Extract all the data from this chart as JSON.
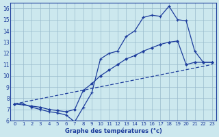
{
  "xlabel": "Graphe des températures (°c)",
  "xlim": [
    -0.5,
    23.5
  ],
  "ylim": [
    6,
    16.5
  ],
  "yticks": [
    6,
    7,
    8,
    9,
    10,
    11,
    12,
    13,
    14,
    15,
    16
  ],
  "xticks": [
    0,
    1,
    2,
    3,
    4,
    5,
    6,
    7,
    8,
    9,
    10,
    11,
    12,
    13,
    14,
    15,
    16,
    17,
    18,
    19,
    20,
    21,
    22,
    23
  ],
  "bg_color": "#cce8ee",
  "line_color": "#1c3c9c",
  "grid_color": "#99bbcc",
  "line1_x": [
    0,
    1,
    2,
    3,
    4,
    5,
    6,
    7,
    8,
    9,
    10,
    11,
    12,
    13,
    14,
    15,
    16,
    17,
    18,
    19,
    20,
    21,
    22,
    23
  ],
  "line1_y": [
    7.5,
    7.5,
    7.2,
    7.0,
    6.8,
    6.7,
    6.5,
    5.9,
    7.2,
    8.5,
    11.5,
    12.0,
    12.2,
    13.5,
    14.0,
    15.2,
    15.4,
    15.3,
    16.2,
    15.0,
    14.9,
    12.2,
    11.2,
    11.2
  ],
  "line2_x": [
    0,
    2,
    3,
    4,
    5,
    6,
    7,
    8,
    9,
    10,
    11,
    12,
    13,
    14,
    15,
    16,
    17,
    18,
    19,
    20,
    21,
    22,
    23
  ],
  "line2_y": [
    7.5,
    7.3,
    7.2,
    7.0,
    6.9,
    6.8,
    7.0,
    8.7,
    9.3,
    10.0,
    10.5,
    11.0,
    11.5,
    11.8,
    12.2,
    12.5,
    12.8,
    13.0,
    13.1,
    11.0,
    11.2,
    11.2,
    11.2
  ],
  "line3_x": [
    0,
    23
  ],
  "line3_y": [
    7.5,
    11.0
  ]
}
